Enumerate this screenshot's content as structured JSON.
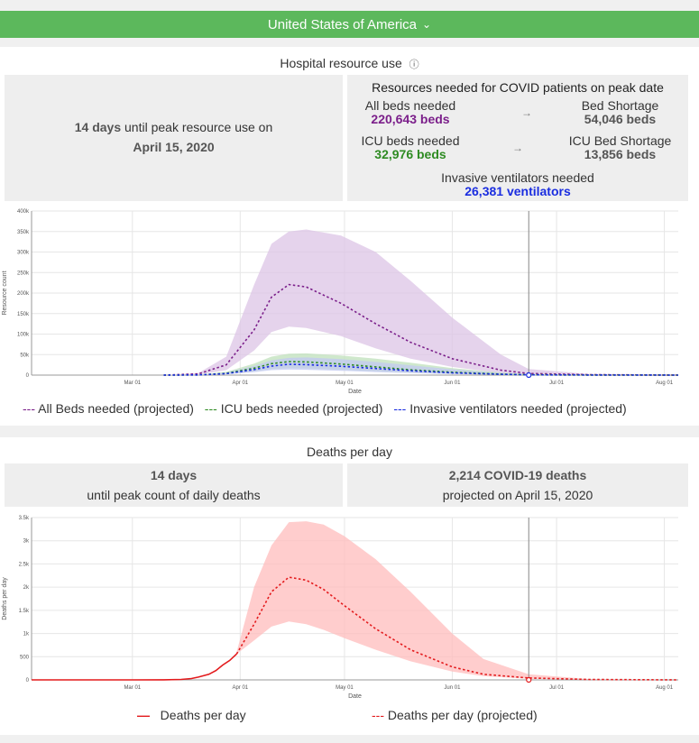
{
  "country": {
    "name": "United States of America",
    "chevron": "⌄"
  },
  "hospital": {
    "title": "Hospital resource use",
    "info_icon": "ⓘ",
    "peak": {
      "days": "14 days",
      "until_text": "until peak resource use on",
      "date": "April 15, 2020"
    },
    "resources_title": "Resources needed for COVID patients on peak date",
    "all_beds_label": "All beds needed",
    "all_beds_value": "220,643 beds",
    "bed_shortage_label": "Bed Shortage",
    "bed_shortage_value": "54,046 beds",
    "icu_beds_label": "ICU beds needed",
    "icu_beds_value": "32,976 beds",
    "icu_shortage_label": "ICU Bed Shortage",
    "icu_shortage_value": "13,856 beds",
    "ventilators_label": "Invasive ventilators needed",
    "ventilators_value": "26,381 ventilators",
    "arrow": "→",
    "legend": [
      {
        "label": "All Beds needed (projected)",
        "color": "#7b1f8a"
      },
      {
        "label": "ICU beds needed (projected)",
        "color": "#2e8b22"
      },
      {
        "label": "Invasive ventilators needed (projected)",
        "color": "#1a2de0"
      }
    ]
  },
  "deaths": {
    "title": "Deaths per day",
    "peak_days": "14 days",
    "peak_text": "until peak count of daily deaths",
    "deaths_value": "2,214 COVID-19 deaths",
    "projected_text": "projected on April 15, 2020",
    "legend": [
      {
        "label": "Deaths per day",
        "color": "#e31a1c"
      },
      {
        "label": "Deaths per day (projected)",
        "color": "#e31a1c"
      }
    ]
  },
  "chart_data": [
    {
      "type": "line",
      "ylabel": "Resource count",
      "xlabel": "Date",
      "x_ticks": [
        "Mar 01",
        "Apr 01",
        "May 01",
        "Jun 01",
        "Jul 01",
        "Aug 01"
      ],
      "y_ticks": [
        "0",
        "50k",
        "100k",
        "150k",
        "200k",
        "250k",
        "300k",
        "350k",
        "400k"
      ],
      "ylim": [
        0,
        400000
      ],
      "marker_date": "Jun 23",
      "grid": true,
      "series": [
        {
          "name": "All Beds needed (projected)",
          "color": "#7b1f8a",
          "x": [
            "Mar 10",
            "Mar 20",
            "Mar 28",
            "Apr 05",
            "Apr 10",
            "Apr 15",
            "Apr 20",
            "Apr 30",
            "May 10",
            "May 20",
            "Jun 01",
            "Jun 15",
            "Jun 23",
            "Jul 10",
            "Aug 05"
          ],
          "values": [
            0,
            3000,
            25000,
            110000,
            190000,
            220643,
            215000,
            175000,
            125000,
            80000,
            40000,
            12000,
            4000,
            1000,
            0
          ],
          "upper": [
            0,
            5000,
            45000,
            220000,
            320000,
            350000,
            355000,
            340000,
            300000,
            230000,
            140000,
            50000,
            15000,
            3000,
            0
          ],
          "lower": [
            0,
            1000,
            12000,
            60000,
            105000,
            118000,
            115000,
            95000,
            65000,
            40000,
            20000,
            5000,
            1500,
            300,
            0
          ]
        },
        {
          "name": "ICU beds needed (projected)",
          "color": "#2e8b22",
          "x": [
            "Mar 10",
            "Mar 20",
            "Mar 28",
            "Apr 05",
            "Apr 10",
            "Apr 15",
            "Apr 20",
            "Apr 30",
            "May 10",
            "May 20",
            "Jun 01",
            "Jun 15",
            "Jun 23",
            "Jul 10",
            "Aug 05"
          ],
          "values": [
            0,
            500,
            4500,
            17000,
            28000,
            32976,
            32000,
            27000,
            20000,
            13000,
            7000,
            2500,
            800,
            200,
            0
          ],
          "upper": [
            0,
            900,
            8000,
            28000,
            45000,
            52000,
            53000,
            48000,
            40000,
            30000,
            17000,
            6000,
            2000,
            500,
            0
          ],
          "lower": [
            0,
            200,
            2500,
            9000,
            15000,
            17000,
            16500,
            13000,
            9500,
            6000,
            3000,
            1000,
            300,
            80,
            0
          ]
        },
        {
          "name": "Invasive ventilators needed (projected)",
          "color": "#1a2de0",
          "x": [
            "Mar 10",
            "Mar 20",
            "Mar 28",
            "Apr 05",
            "Apr 10",
            "Apr 15",
            "Apr 20",
            "Apr 30",
            "May 10",
            "May 20",
            "Jun 01",
            "Jun 15",
            "Jun 23",
            "Jul 10",
            "Aug 05"
          ],
          "values": [
            0,
            400,
            3500,
            13500,
            22000,
            26381,
            25500,
            21500,
            16000,
            10500,
            5500,
            2000,
            600,
            150,
            0
          ],
          "upper": [
            0,
            700,
            6500,
            22000,
            36000,
            42000,
            43000,
            39000,
            32000,
            24000,
            14000,
            5000,
            1600,
            400,
            0
          ],
          "lower": [
            0,
            150,
            2000,
            7000,
            12000,
            13500,
            13000,
            10500,
            7500,
            4800,
            2400,
            800,
            250,
            60,
            0
          ]
        }
      ]
    },
    {
      "type": "line",
      "ylabel": "Deaths per day",
      "xlabel": "Date",
      "x_ticks": [
        "Mar 01",
        "Apr 01",
        "May 01",
        "Jun 01",
        "Jul 01",
        "Aug 01"
      ],
      "y_ticks": [
        "0",
        "500",
        "1k",
        "1.5k",
        "2k",
        "2.5k",
        "3k",
        "3.5k"
      ],
      "ylim": [
        0,
        3500
      ],
      "marker_date": "Jun 23",
      "grid": true,
      "series": [
        {
          "name": "Deaths per day",
          "color": "#e31a1c",
          "x": [
            "Feb 01",
            "Mar 01",
            "Mar 10",
            "Mar 15",
            "Mar 18",
            "Mar 20",
            "Mar 23",
            "Mar 25",
            "Mar 27",
            "Mar 29",
            "Mar 31"
          ],
          "values": [
            0,
            0,
            2,
            10,
            30,
            60,
            120,
            200,
            320,
            420,
            560
          ]
        },
        {
          "name": "Deaths per day (projected)",
          "color": "#e31a1c",
          "x": [
            "Mar 31",
            "Apr 05",
            "Apr 10",
            "Apr 15",
            "Apr 20",
            "Apr 25",
            "May 01",
            "May 10",
            "May 20",
            "Jun 01",
            "Jun 10",
            "Jun 23",
            "Jul 10",
            "Aug 05"
          ],
          "values": [
            560,
            1200,
            1900,
            2214,
            2150,
            1950,
            1600,
            1100,
            650,
            280,
            120,
            40,
            10,
            0
          ],
          "upper": [
            600,
            2000,
            2900,
            3400,
            3420,
            3350,
            3100,
            2600,
            1900,
            1000,
            450,
            120,
            20,
            0
          ],
          "lower": [
            560,
            850,
            1150,
            1260,
            1200,
            1080,
            900,
            650,
            400,
            180,
            80,
            25,
            5,
            0
          ]
        }
      ]
    }
  ]
}
